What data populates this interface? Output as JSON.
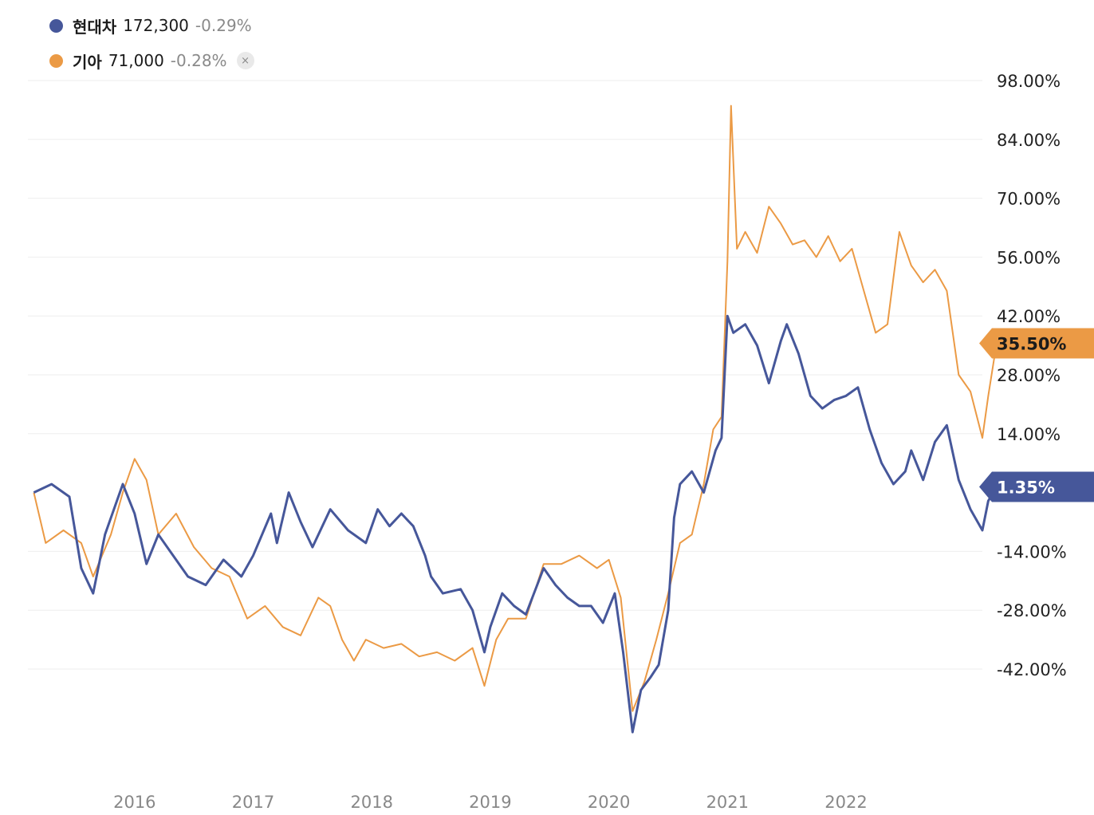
{
  "legend": {
    "items": [
      {
        "name": "현대차",
        "price": "172,300",
        "change": "-0.29%",
        "color": "#46579a"
      },
      {
        "name": "기아",
        "price": "71,000",
        "change": "-0.28%",
        "color": "#eb9a45"
      }
    ],
    "close_icon": "×"
  },
  "chart_data": {
    "type": "line",
    "y_tick_labels": [
      "98.00%",
      "84.00%",
      "70.00%",
      "56.00%",
      "42.00%",
      "28.00%",
      "14.00%",
      "-14.00%",
      "-28.00%",
      "-42.00%"
    ],
    "x_tick_labels": [
      "2016",
      "2017",
      "2018",
      "2019",
      "2020",
      "2021",
      "2022"
    ],
    "ylim": [
      -64,
      104
    ],
    "xlim": [
      2015.1,
      2023.15
    ],
    "grid": true,
    "series": [
      {
        "name": "현대차",
        "color": "#46579a",
        "last_label": "1.35%",
        "points": [
          [
            2015.15,
            0
          ],
          [
            2015.3,
            2
          ],
          [
            2015.45,
            -1
          ],
          [
            2015.55,
            -18
          ],
          [
            2015.65,
            -24
          ],
          [
            2015.75,
            -10
          ],
          [
            2015.9,
            2
          ],
          [
            2016.0,
            -5
          ],
          [
            2016.1,
            -17
          ],
          [
            2016.2,
            -10
          ],
          [
            2016.3,
            -14
          ],
          [
            2016.45,
            -20
          ],
          [
            2016.6,
            -22
          ],
          [
            2016.75,
            -16
          ],
          [
            2016.9,
            -20
          ],
          [
            2017.0,
            -15
          ],
          [
            2017.15,
            -5
          ],
          [
            2017.2,
            -12
          ],
          [
            2017.3,
            0
          ],
          [
            2017.4,
            -7
          ],
          [
            2017.5,
            -13
          ],
          [
            2017.65,
            -4
          ],
          [
            2017.8,
            -9
          ],
          [
            2017.95,
            -12
          ],
          [
            2018.05,
            -4
          ],
          [
            2018.15,
            -8
          ],
          [
            2018.25,
            -5
          ],
          [
            2018.35,
            -8
          ],
          [
            2018.45,
            -15
          ],
          [
            2018.5,
            -20
          ],
          [
            2018.6,
            -24
          ],
          [
            2018.75,
            -23
          ],
          [
            2018.85,
            -28
          ],
          [
            2018.95,
            -38
          ],
          [
            2019.0,
            -32
          ],
          [
            2019.1,
            -24
          ],
          [
            2019.2,
            -27
          ],
          [
            2019.3,
            -29
          ],
          [
            2019.45,
            -18
          ],
          [
            2019.55,
            -22
          ],
          [
            2019.65,
            -25
          ],
          [
            2019.75,
            -27
          ],
          [
            2019.85,
            -27
          ],
          [
            2019.95,
            -31
          ],
          [
            2020.05,
            -24
          ],
          [
            2020.12,
            -38
          ],
          [
            2020.2,
            -57
          ],
          [
            2020.27,
            -47
          ],
          [
            2020.35,
            -44
          ],
          [
            2020.42,
            -41
          ],
          [
            2020.5,
            -28
          ],
          [
            2020.55,
            -6
          ],
          [
            2020.6,
            2
          ],
          [
            2020.7,
            5
          ],
          [
            2020.8,
            0
          ],
          [
            2020.9,
            10
          ],
          [
            2020.95,
            13
          ],
          [
            2021.0,
            42
          ],
          [
            2021.05,
            38
          ],
          [
            2021.15,
            40
          ],
          [
            2021.25,
            35
          ],
          [
            2021.35,
            26
          ],
          [
            2021.45,
            36
          ],
          [
            2021.5,
            40
          ],
          [
            2021.6,
            33
          ],
          [
            2021.7,
            23
          ],
          [
            2021.8,
            20
          ],
          [
            2021.9,
            22
          ],
          [
            2022.0,
            23
          ],
          [
            2022.1,
            25
          ],
          [
            2022.2,
            15
          ],
          [
            2022.3,
            7
          ],
          [
            2022.4,
            2
          ],
          [
            2022.5,
            5
          ],
          [
            2022.55,
            10
          ],
          [
            2022.65,
            3
          ],
          [
            2022.75,
            12
          ],
          [
            2022.85,
            16
          ],
          [
            2022.95,
            3
          ],
          [
            2023.05,
            -4
          ],
          [
            2023.15,
            -9
          ],
          [
            2023.2,
            -2
          ],
          [
            2023.27,
            1.35
          ]
        ]
      },
      {
        "name": "기아",
        "color": "#eb9a45",
        "last_label": "35.50%",
        "points": [
          [
            2015.15,
            0
          ],
          [
            2015.25,
            -12
          ],
          [
            2015.4,
            -9
          ],
          [
            2015.55,
            -12
          ],
          [
            2015.65,
            -20
          ],
          [
            2015.8,
            -10
          ],
          [
            2015.9,
            0
          ],
          [
            2016.0,
            8
          ],
          [
            2016.1,
            3
          ],
          [
            2016.2,
            -10
          ],
          [
            2016.35,
            -5
          ],
          [
            2016.5,
            -13
          ],
          [
            2016.65,
            -18
          ],
          [
            2016.8,
            -20
          ],
          [
            2016.95,
            -30
          ],
          [
            2017.1,
            -27
          ],
          [
            2017.25,
            -32
          ],
          [
            2017.4,
            -34
          ],
          [
            2017.55,
            -25
          ],
          [
            2017.65,
            -27
          ],
          [
            2017.75,
            -35
          ],
          [
            2017.85,
            -40
          ],
          [
            2017.95,
            -35
          ],
          [
            2018.1,
            -37
          ],
          [
            2018.25,
            -36
          ],
          [
            2018.4,
            -39
          ],
          [
            2018.55,
            -38
          ],
          [
            2018.7,
            -40
          ],
          [
            2018.85,
            -37
          ],
          [
            2018.95,
            -46
          ],
          [
            2019.05,
            -35
          ],
          [
            2019.15,
            -30
          ],
          [
            2019.3,
            -30
          ],
          [
            2019.45,
            -17
          ],
          [
            2019.6,
            -17
          ],
          [
            2019.75,
            -15
          ],
          [
            2019.9,
            -18
          ],
          [
            2020.0,
            -16
          ],
          [
            2020.1,
            -25
          ],
          [
            2020.2,
            -52
          ],
          [
            2020.3,
            -45
          ],
          [
            2020.4,
            -35
          ],
          [
            2020.5,
            -24
          ],
          [
            2020.6,
            -12
          ],
          [
            2020.7,
            -10
          ],
          [
            2020.8,
            2
          ],
          [
            2020.88,
            15
          ],
          [
            2020.95,
            18
          ],
          [
            2021.0,
            55
          ],
          [
            2021.03,
            92
          ],
          [
            2021.08,
            58
          ],
          [
            2021.15,
            62
          ],
          [
            2021.25,
            57
          ],
          [
            2021.35,
            68
          ],
          [
            2021.45,
            64
          ],
          [
            2021.55,
            59
          ],
          [
            2021.65,
            60
          ],
          [
            2021.75,
            56
          ],
          [
            2021.85,
            61
          ],
          [
            2021.95,
            55
          ],
          [
            2022.05,
            58
          ],
          [
            2022.15,
            48
          ],
          [
            2022.25,
            38
          ],
          [
            2022.35,
            40
          ],
          [
            2022.45,
            62
          ],
          [
            2022.55,
            54
          ],
          [
            2022.65,
            50
          ],
          [
            2022.75,
            53
          ],
          [
            2022.85,
            48
          ],
          [
            2022.95,
            28
          ],
          [
            2023.05,
            24
          ],
          [
            2023.15,
            13
          ],
          [
            2023.2,
            23
          ],
          [
            2023.27,
            35.5
          ]
        ]
      }
    ]
  }
}
